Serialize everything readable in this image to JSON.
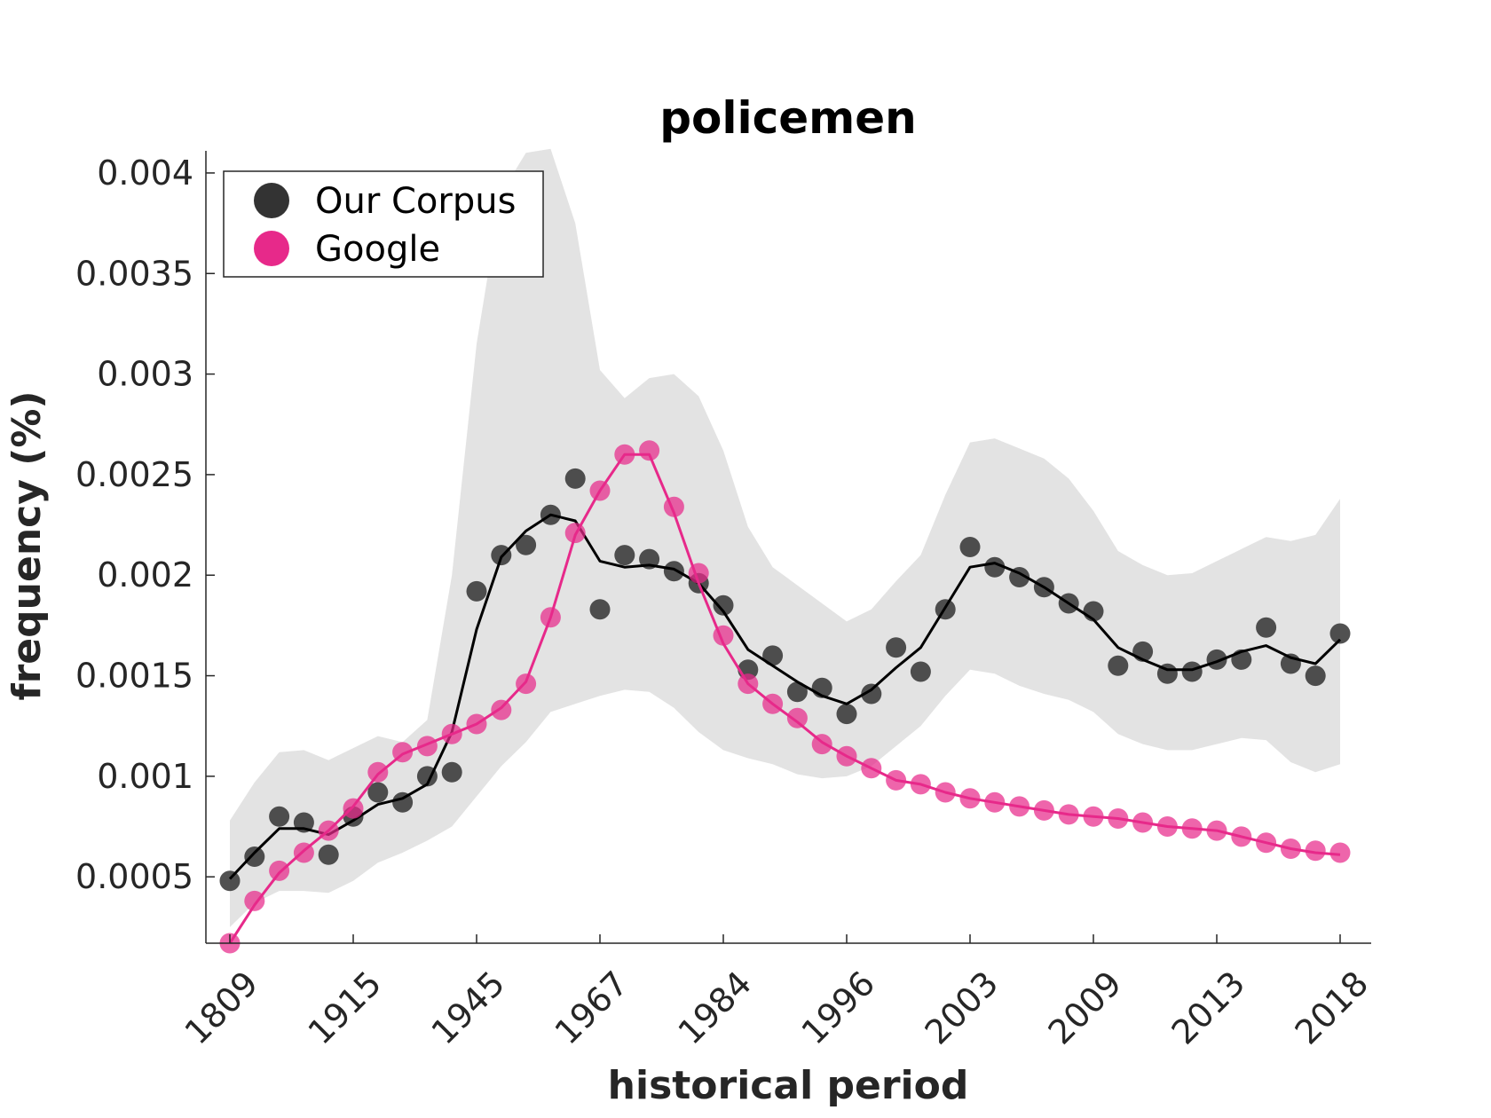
{
  "chart_data": {
    "type": "scatter",
    "title": "policemen",
    "xlabel": "historical period",
    "ylabel": "frequency (%)",
    "ylim": [
      0.00017,
      0.00411
    ],
    "y_ticks": [
      0.0005,
      0.001,
      0.0015,
      0.002,
      0.0025,
      0.003,
      0.0035,
      0.004
    ],
    "y_tick_labels": [
      "0.0005",
      "0.001",
      "0.0015",
      "0.002",
      "0.0025",
      "0.003",
      "0.0035",
      "0.004"
    ],
    "x_tick_indices": [
      0,
      5,
      10,
      15,
      20,
      25,
      30,
      35,
      40,
      45
    ],
    "x_tick_labels": [
      "1809",
      "1915",
      "1945",
      "1967",
      "1984",
      "1996",
      "2003",
      "2009",
      "2013",
      "2018"
    ],
    "grid": false,
    "legend_position": "top-left",
    "series": [
      {
        "name": "Our Corpus",
        "color": "#000000",
        "marker_color": "#333333",
        "points": [
          0.00048,
          0.0006,
          0.0008,
          0.00077,
          0.00061,
          0.0008,
          0.00092,
          0.00087,
          0.001,
          0.00102,
          0.00192,
          0.0021,
          0.00215,
          0.0023,
          0.00248,
          0.00183,
          0.0021,
          0.00208,
          0.00202,
          0.00196,
          0.00185,
          0.00153,
          0.0016,
          0.00142,
          0.00144,
          0.00131,
          0.00141,
          0.00164,
          0.00152,
          0.00183,
          0.00214,
          0.00204,
          0.00199,
          0.00194,
          0.00186,
          0.00182,
          0.00155,
          0.00162,
          0.00151,
          0.00152,
          0.00158,
          0.00158,
          0.00174,
          0.00156,
          0.0015,
          0.00171
        ],
        "smoothed": [
          0.00049,
          0.00062,
          0.00074,
          0.00074,
          0.00071,
          0.00078,
          0.00086,
          0.00089,
          0.00096,
          0.00122,
          0.00173,
          0.00209,
          0.00222,
          0.0023,
          0.00227,
          0.00207,
          0.00204,
          0.00205,
          0.00203,
          0.00196,
          0.00182,
          0.00163,
          0.00155,
          0.00147,
          0.0014,
          0.00136,
          0.00143,
          0.00154,
          0.00164,
          0.00184,
          0.00204,
          0.00206,
          0.00201,
          0.00194,
          0.00186,
          0.00178,
          0.00164,
          0.00158,
          0.00153,
          0.00153,
          0.00157,
          0.00162,
          0.00165,
          0.00159,
          0.00156,
          0.00168
        ],
        "band_upper": [
          0.00078,
          0.00097,
          0.00112,
          0.00113,
          0.00108,
          0.00114,
          0.0012,
          0.00117,
          0.00128,
          0.002,
          0.00315,
          0.0039,
          0.0041,
          0.00412,
          0.00375,
          0.00302,
          0.00288,
          0.00298,
          0.003,
          0.00289,
          0.00262,
          0.00224,
          0.00204,
          0.00195,
          0.00186,
          0.00177,
          0.00183,
          0.00197,
          0.0021,
          0.0024,
          0.00266,
          0.00268,
          0.00263,
          0.00258,
          0.00248,
          0.00232,
          0.00212,
          0.00205,
          0.002,
          0.00201,
          0.00207,
          0.00213,
          0.00219,
          0.00217,
          0.0022,
          0.00238
        ],
        "band_lower": [
          0.00025,
          0.00037,
          0.00043,
          0.00043,
          0.00042,
          0.00048,
          0.00057,
          0.00062,
          0.00068,
          0.00075,
          0.0009,
          0.00105,
          0.00117,
          0.00132,
          0.00136,
          0.0014,
          0.00143,
          0.00142,
          0.00134,
          0.00122,
          0.00113,
          0.00109,
          0.00106,
          0.00101,
          0.00099,
          0.001,
          0.00105,
          0.00115,
          0.00125,
          0.0014,
          0.00153,
          0.00151,
          0.00145,
          0.00141,
          0.00138,
          0.00132,
          0.00121,
          0.00116,
          0.00113,
          0.00113,
          0.00116,
          0.00119,
          0.00118,
          0.00107,
          0.00102,
          0.00106
        ]
      },
      {
        "name": "Google",
        "color": "#e7298a",
        "marker_color": "#e7298a",
        "points": [
          0.00017,
          0.00038,
          0.00053,
          0.00062,
          0.00073,
          0.00084,
          0.00102,
          0.00112,
          0.00115,
          0.00121,
          0.00126,
          0.00133,
          0.00146,
          0.00179,
          0.00221,
          0.00242,
          0.0026,
          0.00262,
          0.00234,
          0.00201,
          0.0017,
          0.00146,
          0.00136,
          0.00129,
          0.00116,
          0.0011,
          0.00104,
          0.00098,
          0.00096,
          0.00092,
          0.00089,
          0.00087,
          0.00085,
          0.00083,
          0.00081,
          0.0008,
          0.00079,
          0.00077,
          0.00075,
          0.00074,
          0.00073,
          0.0007,
          0.00067,
          0.00064,
          0.00063,
          0.00062
        ],
        "smoothed": [
          0.00017,
          0.00036,
          0.00052,
          0.00063,
          0.00073,
          0.00085,
          0.00101,
          0.00111,
          0.00116,
          0.00121,
          0.00126,
          0.00134,
          0.00147,
          0.00179,
          0.0022,
          0.00242,
          0.0026,
          0.0026,
          0.00231,
          0.00196,
          0.00166,
          0.00146,
          0.00136,
          0.00127,
          0.00117,
          0.0011,
          0.00104,
          0.00098,
          0.00096,
          0.00092,
          0.00089,
          0.00087,
          0.00085,
          0.00083,
          0.00081,
          0.0008,
          0.00079,
          0.00077,
          0.00075,
          0.00074,
          0.00073,
          0.0007,
          0.00067,
          0.00064,
          0.00062,
          0.00061
        ]
      }
    ]
  }
}
